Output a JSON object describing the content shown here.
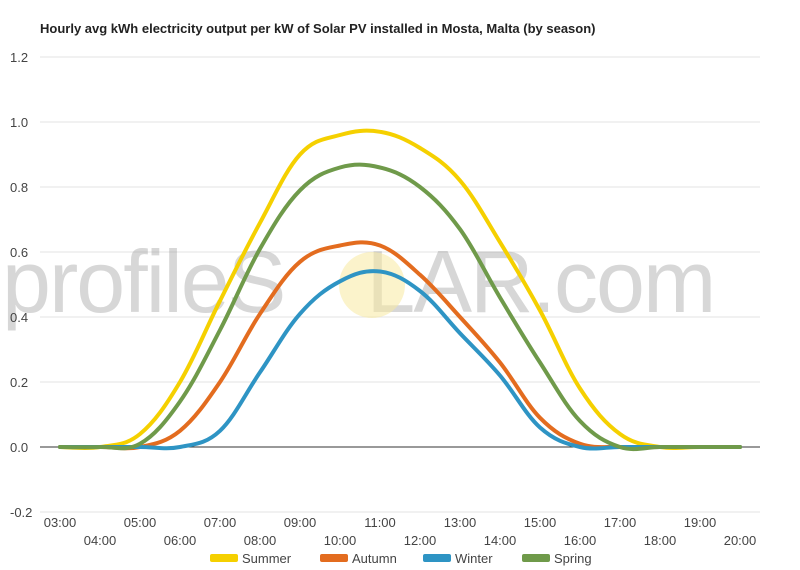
{
  "chart_data": {
    "type": "line",
    "title": "Hourly avg kWh electricity output per kW of Solar PV installed in Mosta, Malta (by season)",
    "xlabel": "",
    "ylabel": "",
    "watermark": {
      "part1": "profileS",
      "part2": "LAR.com"
    },
    "x": [
      3,
      4,
      5,
      6,
      7,
      8,
      9,
      10,
      11,
      12,
      13,
      14,
      15,
      16,
      17,
      18,
      19,
      20
    ],
    "x_tick_labels": [
      "03:00",
      "04:00",
      "05:00",
      "06:00",
      "07:00",
      "08:00",
      "09:00",
      "10:00",
      "11:00",
      "12:00",
      "13:00",
      "14:00",
      "15:00",
      "16:00",
      "17:00",
      "18:00",
      "19:00",
      "20:00"
    ],
    "y_ticks": [
      "-0.2",
      "0.0",
      "0.2",
      "0.4",
      "0.6",
      "0.8",
      "1.0",
      "1.2"
    ],
    "ylim": [
      -0.2,
      1.2
    ],
    "grid": true,
    "legend_position": "bottom",
    "series": [
      {
        "name": "Summer",
        "color": "#f5d000",
        "values": [
          0.0,
          0.0,
          0.04,
          0.2,
          0.45,
          0.69,
          0.9,
          0.96,
          0.97,
          0.92,
          0.82,
          0.63,
          0.42,
          0.18,
          0.04,
          0.0,
          0.0,
          0.0
        ]
      },
      {
        "name": "Autumn",
        "color": "#e36c1f",
        "values": [
          0.0,
          0.0,
          0.0,
          0.05,
          0.2,
          0.41,
          0.57,
          0.62,
          0.62,
          0.53,
          0.4,
          0.26,
          0.09,
          0.01,
          0.0,
          0.0,
          0.0,
          0.0
        ]
      },
      {
        "name": "Winter",
        "color": "#2e94c4",
        "values": [
          0.0,
          0.0,
          0.0,
          0.0,
          0.05,
          0.23,
          0.41,
          0.51,
          0.54,
          0.48,
          0.35,
          0.22,
          0.06,
          0.0,
          0.0,
          0.0,
          0.0,
          0.0
        ]
      },
      {
        "name": "Spring",
        "color": "#6f9a4a",
        "values": [
          0.0,
          0.0,
          0.01,
          0.14,
          0.36,
          0.61,
          0.79,
          0.86,
          0.86,
          0.8,
          0.67,
          0.46,
          0.26,
          0.08,
          0.0,
          0.0,
          0.0,
          0.0
        ]
      }
    ]
  }
}
